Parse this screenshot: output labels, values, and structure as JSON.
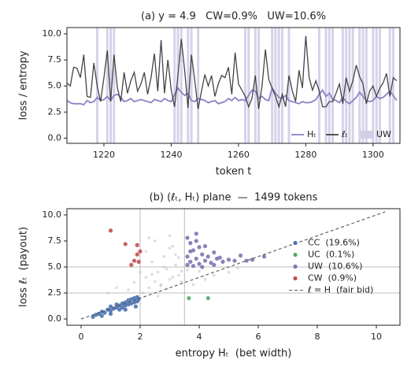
{
  "chart_data": [
    {
      "type": "line",
      "title": "(a) y = 4.9   CW=0.9%   UW=10.6%",
      "xlabel": "token t",
      "ylabel": "loss / entropy",
      "x": [
        1209,
        1210,
        1211,
        1212,
        1213,
        1214,
        1215,
        1216,
        1217,
        1218,
        1219,
        1220,
        1221,
        1222,
        1223,
        1224,
        1225,
        1226,
        1227,
        1228,
        1229,
        1230,
        1231,
        1232,
        1233,
        1234,
        1235,
        1236,
        1237,
        1238,
        1239,
        1240,
        1241,
        1242,
        1243,
        1244,
        1245,
        1246,
        1247,
        1248,
        1249,
        1250,
        1251,
        1252,
        1253,
        1254,
        1255,
        1256,
        1257,
        1258,
        1259,
        1260,
        1261,
        1262,
        1263,
        1264,
        1265,
        1266,
        1267,
        1268,
        1269,
        1270,
        1271,
        1272,
        1273,
        1274,
        1275,
        1276,
        1277,
        1278,
        1279,
        1280,
        1281,
        1282,
        1283,
        1284,
        1285,
        1286,
        1287,
        1288,
        1289,
        1290,
        1291,
        1292,
        1293,
        1294,
        1295,
        1296,
        1297,
        1298,
        1299,
        1300,
        1301,
        1302,
        1303,
        1304,
        1305,
        1306,
        1307
      ],
      "xlim": [
        1209,
        1308
      ],
      "ylim": [
        -0.5,
        10.6
      ],
      "xticks": [
        1220,
        1240,
        1260,
        1280,
        1300
      ],
      "yticks": [
        {
          "value": 0,
          "label": "0.0"
        },
        {
          "value": 2.5,
          "label": "2.5"
        },
        {
          "value": 5,
          "label": "5.0"
        },
        {
          "value": 7.5,
          "label": "7.5"
        },
        {
          "value": 10,
          "label": "10.0"
        }
      ],
      "series": [
        {
          "name": "Hₜ",
          "color": "#8c80c4",
          "values": [
            3.6,
            3.4,
            3.3,
            3.3,
            3.3,
            3.2,
            3.6,
            3.4,
            3.5,
            3.9,
            3.6,
            3.7,
            4.0,
            3.6,
            4.1,
            4.2,
            3.9,
            3.5,
            3.6,
            3.8,
            3.5,
            3.6,
            3.7,
            3.6,
            3.5,
            3.4,
            3.7,
            3.6,
            3.5,
            3.8,
            3.6,
            3.5,
            4.2,
            4.8,
            4.4,
            4.1,
            4.3,
            3.6,
            3.5,
            3.8,
            3.7,
            3.6,
            3.4,
            3.5,
            3.6,
            3.3,
            3.4,
            3.5,
            3.8,
            3.6,
            3.9,
            3.6,
            3.7,
            3.6,
            4.1,
            4.6,
            4.5,
            3.8,
            4.0,
            3.7,
            3.6,
            4.8,
            4.3,
            3.9,
            3.8,
            4.1,
            3.6,
            3.5,
            3.4,
            3.3,
            3.5,
            3.4,
            3.4,
            3.5,
            3.7,
            4.2,
            4.6,
            4.0,
            4.3,
            3.7,
            3.6,
            3.4,
            3.9,
            3.5,
            3.3,
            3.6,
            3.9,
            4.4,
            4.0,
            3.6,
            3.5,
            3.6,
            4.0,
            3.8,
            3.9,
            4.2,
            4.5,
            4.1,
            3.6
          ]
        },
        {
          "name": "ℓₜ",
          "color": "#444444",
          "values": [
            5.3,
            5.0,
            6.8,
            6.7,
            5.8,
            8.0,
            4.0,
            3.9,
            7.2,
            5.0,
            3.5,
            5.8,
            8.4,
            3.5,
            8.0,
            4.8,
            3.5,
            6.3,
            4.3,
            5.5,
            6.3,
            4.5,
            5.2,
            6.3,
            4.2,
            5.8,
            8.1,
            4.5,
            9.4,
            4.3,
            7.5,
            4.6,
            3.0,
            6.0,
            9.5,
            6.5,
            2.9,
            8.0,
            5.5,
            2.8,
            4.5,
            6.1,
            5.0,
            6.0,
            4.0,
            5.2,
            6.0,
            5.8,
            6.8,
            4.2,
            8.2,
            5.2,
            4.6,
            4.0,
            3.0,
            3.8,
            6.0,
            2.8,
            5.0,
            8.5,
            5.6,
            4.8,
            4.0,
            3.0,
            4.2,
            3.0,
            6.0,
            4.5,
            3.5,
            6.5,
            4.8,
            9.8,
            5.8,
            4.6,
            5.5,
            4.5,
            3.0,
            3.0,
            3.5,
            3.5,
            4.3,
            5.2,
            3.3,
            5.8,
            4.5,
            5.5,
            7.0,
            5.9,
            5.2,
            3.3,
            4.5,
            5.0,
            4.0,
            4.8,
            5.3,
            6.2,
            4.0,
            5.8,
            5.5
          ]
        }
      ],
      "spans": {
        "name": "UW",
        "color": "#d3cde8",
        "x": [
          1218,
          1221,
          1222,
          1223,
          1241,
          1242,
          1243,
          1245,
          1246,
          1248,
          1262,
          1263,
          1265,
          1266,
          1270,
          1271,
          1272,
          1273,
          1275,
          1284,
          1286,
          1287,
          1288,
          1291,
          1292,
          1293,
          1294,
          1296,
          1297,
          1298,
          1300,
          1301,
          1302,
          1305,
          1306
        ]
      },
      "legend": "lower right"
    },
    {
      "type": "scatter",
      "title": "(b) (ℓₜ, Hₜ) plane  —  1499 tokens",
      "xlabel": "entropy Hₜ  (bet width)",
      "ylabel": "loss ℓₜ  (payout)",
      "xlim": [
        -0.48,
        10.8
      ],
      "ylim": [
        -0.6,
        10.6
      ],
      "xticks": [
        0,
        2,
        4,
        6,
        8,
        10
      ],
      "yticks": [
        {
          "value": 0,
          "label": "0.0"
        },
        {
          "value": 2.5,
          "label": "2.5"
        },
        {
          "value": 5,
          "label": "5.0"
        },
        {
          "value": 7.5,
          "label": "7.5"
        },
        {
          "value": 10,
          "label": "10.0"
        }
      ],
      "thresholds": {
        "x": [
          2,
          3.5
        ],
        "y": [
          2.5,
          5
        ]
      },
      "series": [
        {
          "color": "#bbbbbb",
          "x": [
            1.6,
            1.8,
            2.1,
            2.2,
            2.3,
            2.4,
            2.5,
            2.6,
            2.7,
            2.8,
            2.9,
            3.0,
            3.1,
            3.2,
            3.3,
            3.4,
            2.2,
            2.5,
            2.8,
            3.0,
            3.2,
            3.4,
            2.6,
            2.9,
            3.1,
            3.3,
            2.4,
            2.7,
            3.0,
            4.5,
            5.0,
            3.8,
            4.2,
            1.2,
            0.9,
            2.0,
            2.3,
            3.6,
            4.0,
            5.3
          ],
          "y": [
            2.8,
            3.5,
            2.5,
            4.0,
            3.0,
            5.5,
            3.6,
            4.5,
            3.2,
            6.0,
            4.8,
            3.8,
            7.0,
            5.2,
            4.2,
            3.6,
            6.5,
            7.5,
            5.0,
            8.0,
            6.2,
            4.6,
            2.2,
            2.9,
            4.0,
            5.9,
            4.3,
            3.3,
            6.8,
            4.2,
            4.5,
            3.3,
            3.8,
            3.0,
            2.5,
            4.5,
            7.8,
            4.7,
            4.6,
            4.9
          ]
        },
        {
          "name": "CC  (19.6%)",
          "color": "#4c72b0",
          "x": [
            0.4,
            0.5,
            0.6,
            0.7,
            0.8,
            0.9,
            1.0,
            1.0,
            1.1,
            1.2,
            1.2,
            1.3,
            1.3,
            1.4,
            1.4,
            1.5,
            1.5,
            1.6,
            1.6,
            1.7,
            1.7,
            1.8,
            1.8,
            1.9,
            1.9,
            1.95,
            0.7,
            1.0,
            1.5,
            1.85
          ],
          "y": [
            0.2,
            0.4,
            0.5,
            0.7,
            0.6,
            0.9,
            0.8,
            1.2,
            1.0,
            1.1,
            1.4,
            1.3,
            0.9,
            1.5,
            1.1,
            1.6,
            1.3,
            1.8,
            1.4,
            1.9,
            1.5,
            2.0,
            1.6,
            2.1,
            1.7,
            1.9,
            0.3,
            0.5,
            0.9,
            1.2
          ]
        },
        {
          "name": "UC  (0.1%)",
          "color": "#55a868",
          "x": [
            3.65,
            4.3
          ],
          "y": [
            2.0,
            2.0
          ]
        },
        {
          "name": "UW  (10.6%)",
          "color": "#8172b3",
          "x": [
            3.6,
            3.6,
            3.7,
            3.7,
            3.8,
            3.8,
            3.9,
            3.9,
            4.0,
            4.0,
            4.1,
            4.2,
            4.2,
            4.3,
            4.4,
            4.5,
            4.6,
            4.7,
            4.8,
            5.0,
            5.2,
            5.4,
            5.6,
            5.8,
            6.2,
            3.6,
            3.9,
            4.1,
            4.5,
            3.7
          ],
          "y": [
            5.2,
            6.0,
            5.5,
            7.3,
            5.1,
            6.6,
            5.8,
            8.2,
            5.3,
            6.9,
            6.2,
            5.6,
            7.0,
            6.0,
            5.4,
            6.4,
            5.8,
            5.9,
            5.5,
            5.7,
            5.6,
            6.1,
            5.6,
            5.7,
            6.0,
            7.8,
            7.5,
            5.0,
            5.2,
            6.5
          ]
        },
        {
          "name": "CW  (0.9%)",
          "color": "#c44e52",
          "x": [
            1.0,
            1.5,
            1.9,
            1.9,
            1.8,
            1.7,
            1.95,
            2.0
          ],
          "y": [
            8.5,
            7.2,
            7.1,
            6.2,
            5.6,
            5.2,
            5.5,
            6.5
          ]
        }
      ],
      "reference_line": {
        "name": "ℓ = H  (fair bid)",
        "color": "#555555",
        "x": [
          0,
          10.3
        ],
        "y": [
          0,
          10.3
        ]
      },
      "legend": "center right"
    }
  ]
}
